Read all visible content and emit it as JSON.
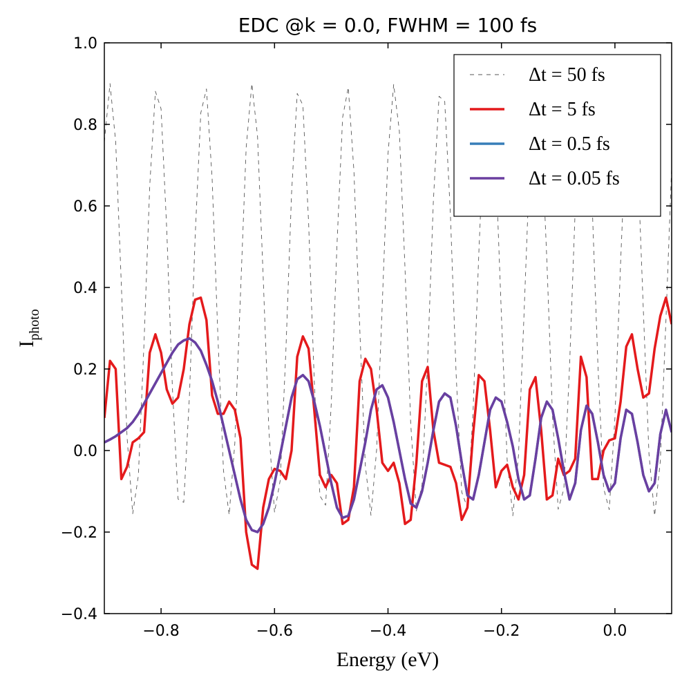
{
  "chart_data": {
    "type": "line",
    "title": "EDC @k = 0.0, FWHM = 100 fs",
    "xlabel": "Energy (eV)",
    "ylabel": {
      "main": "I",
      "sub": "photo"
    },
    "xlim": [
      -0.9,
      0.1
    ],
    "ylim": [
      -0.4,
      1.0
    ],
    "xticks": [
      {
        "value": -0.8,
        "label": "−0.8"
      },
      {
        "value": -0.6,
        "label": "−0.6"
      },
      {
        "value": -0.4,
        "label": "−0.4"
      },
      {
        "value": -0.2,
        "label": "−0.2"
      },
      {
        "value": 0,
        "label": "0.0"
      }
    ],
    "yticks": [
      {
        "value": -0.4,
        "label": "−0.4"
      },
      {
        "value": -0.2,
        "label": "−0.2"
      },
      {
        "value": 0,
        "label": "0.0"
      },
      {
        "value": 0.2,
        "label": "0.2"
      },
      {
        "value": 0.4,
        "label": "0.4"
      },
      {
        "value": 0.6,
        "label": "0.6"
      },
      {
        "value": 0.8,
        "label": "0.8"
      },
      {
        "value": 1,
        "label": "1.0"
      }
    ],
    "legend": "upper right",
    "x": [
      -0.9,
      -0.89,
      -0.88,
      -0.87,
      -0.86,
      -0.85,
      -0.84,
      -0.83,
      -0.82,
      -0.81,
      -0.8,
      -0.79,
      -0.78,
      -0.77,
      -0.76,
      -0.75,
      -0.74,
      -0.73,
      -0.72,
      -0.71,
      -0.7,
      -0.69,
      -0.68,
      -0.67,
      -0.66,
      -0.65,
      -0.64,
      -0.63,
      -0.62,
      -0.61,
      -0.6,
      -0.59,
      -0.58,
      -0.57,
      -0.56,
      -0.55,
      -0.54,
      -0.53,
      -0.52,
      -0.51,
      -0.5,
      -0.49,
      -0.48,
      -0.47,
      -0.46,
      -0.45,
      -0.44,
      -0.43,
      -0.42,
      -0.41,
      -0.4,
      -0.39,
      -0.38,
      -0.37,
      -0.36,
      -0.35,
      -0.34,
      -0.33,
      -0.32,
      -0.31,
      -0.3,
      -0.29,
      -0.28,
      -0.27,
      -0.26,
      -0.25,
      -0.24,
      -0.23,
      -0.22,
      -0.21,
      -0.2,
      -0.19,
      -0.18,
      -0.17,
      -0.16,
      -0.15,
      -0.14,
      -0.13,
      -0.12,
      -0.11,
      -0.1,
      -0.09,
      -0.08,
      -0.07,
      -0.06,
      -0.05,
      -0.04,
      -0.03,
      -0.02,
      -0.01,
      0,
      0.01,
      0.02,
      0.03,
      0.04,
      0.05,
      0.06,
      0.07,
      0.08,
      0.09,
      0.1
    ],
    "series": [
      {
        "name": "Δt = 50 fs",
        "color": "#555555",
        "linestyle": "dashed",
        "values": [
          0.757,
          0.9,
          0.757,
          0.405,
          0.034,
          -0.155,
          -0.061,
          0.266,
          0.649,
          0.881,
          0.838,
          0.542,
          0.153,
          -0.119,
          -0.127,
          0.134,
          0.522,
          0.828,
          0.887,
          0.667,
          0.286,
          -0.049,
          -0.158,
          0.018,
          0.384,
          0.743,
          0.9,
          0.771,
          0.426,
          0.05,
          -0.152,
          -0.073,
          0.245,
          0.631,
          0.876,
          0.847,
          0.561,
          0.172,
          -0.111,
          -0.134,
          0.115,
          0.502,
          0.817,
          0.891,
          0.684,
          0.307,
          -0.036,
          -0.159,
          0.003,
          0.363,
          0.727,
          0.898,
          0.784,
          0.446,
          0.067,
          -0.148,
          -0.084,
          0.225,
          0.613,
          0.869,
          0.856,
          0.58,
          0.191,
          -0.102,
          -0.14,
          0.097,
          0.481,
          0.806,
          0.894,
          0.7,
          0.328,
          -0.022,
          -0.16,
          -0.012,
          0.342,
          0.711,
          0.896,
          0.797,
          0.467,
          0.084,
          -0.144,
          -0.094,
          0.205,
          0.594,
          0.862,
          0.864,
          0.599,
          0.211,
          -0.092,
          -0.145,
          0.08,
          0.461,
          0.793,
          0.897,
          0.716,
          0.348,
          -0.008,
          -0.16,
          -0.026,
          0.322,
          0.695
        ]
      },
      {
        "name": "Δt = 5 fs",
        "color": "#e41a1c",
        "linestyle": "solid",
        "values": [
          0.08,
          0.22,
          0.2,
          -0.07,
          -0.04,
          0.02,
          0.03,
          0.045,
          0.24,
          0.285,
          0.24,
          0.15,
          0.115,
          0.13,
          0.2,
          0.31,
          0.37,
          0.375,
          0.32,
          0.135,
          0.09,
          0.09,
          0.12,
          0.1,
          0.03,
          -0.2,
          -0.28,
          -0.29,
          -0.14,
          -0.07,
          -0.045,
          -0.05,
          -0.07,
          0.0,
          0.23,
          0.28,
          0.25,
          0.1,
          -0.06,
          -0.09,
          -0.06,
          -0.08,
          -0.18,
          -0.17,
          -0.09,
          0.17,
          0.225,
          0.2,
          0.1,
          -0.03,
          -0.05,
          -0.03,
          -0.08,
          -0.18,
          -0.17,
          -0.03,
          0.17,
          0.205,
          0.05,
          -0.03,
          -0.035,
          -0.04,
          -0.08,
          -0.17,
          -0.14,
          0.04,
          0.185,
          0.17,
          0.05,
          -0.09,
          -0.05,
          -0.035,
          -0.09,
          -0.12,
          -0.06,
          0.15,
          0.18,
          0.05,
          -0.12,
          -0.11,
          -0.02,
          -0.06,
          -0.05,
          -0.02,
          0.23,
          0.18,
          -0.07,
          -0.07,
          0.0,
          0.025,
          0.03,
          0.12,
          0.255,
          0.285,
          0.2,
          0.13,
          0.14,
          0.25,
          0.33,
          0.375,
          0.31
        ]
      },
      {
        "name": "Δt = 0.5 fs",
        "color": "#377eb8",
        "linestyle": "solid",
        "values": [
          0.02,
          0.027,
          0.035,
          0.045,
          0.055,
          0.07,
          0.09,
          0.115,
          0.14,
          0.165,
          0.19,
          0.215,
          0.24,
          0.26,
          0.27,
          0.275,
          0.265,
          0.245,
          0.21,
          0.17,
          0.12,
          0.06,
          0.0,
          -0.06,
          -0.12,
          -0.17,
          -0.195,
          -0.2,
          -0.18,
          -0.14,
          -0.08,
          -0.01,
          0.06,
          0.13,
          0.175,
          0.185,
          0.17,
          0.12,
          0.06,
          -0.01,
          -0.08,
          -0.14,
          -0.165,
          -0.16,
          -0.12,
          -0.05,
          0.02,
          0.1,
          0.15,
          0.16,
          0.13,
          0.07,
          0.0,
          -0.07,
          -0.13,
          -0.14,
          -0.1,
          -0.03,
          0.05,
          0.12,
          0.14,
          0.13,
          0.06,
          -0.03,
          -0.11,
          -0.12,
          -0.06,
          0.02,
          0.1,
          0.13,
          0.12,
          0.07,
          0.01,
          -0.07,
          -0.12,
          -0.11,
          -0.02,
          0.08,
          0.12,
          0.1,
          0.03,
          -0.05,
          -0.12,
          -0.08,
          0.05,
          0.11,
          0.09,
          0.02,
          -0.06,
          -0.1,
          -0.08,
          0.03,
          0.1,
          0.09,
          0.02,
          -0.06,
          -0.1,
          -0.08,
          0.04,
          0.1,
          0.045
        ]
      },
      {
        "name": "Δt = 0.05 fs",
        "color": "#6a3fa0",
        "linestyle": "solid",
        "values": [
          0.02,
          0.027,
          0.035,
          0.045,
          0.055,
          0.07,
          0.09,
          0.115,
          0.14,
          0.165,
          0.19,
          0.215,
          0.24,
          0.26,
          0.27,
          0.275,
          0.265,
          0.245,
          0.21,
          0.17,
          0.12,
          0.06,
          0.0,
          -0.06,
          -0.12,
          -0.17,
          -0.195,
          -0.2,
          -0.18,
          -0.14,
          -0.08,
          -0.01,
          0.06,
          0.13,
          0.175,
          0.185,
          0.17,
          0.12,
          0.06,
          -0.01,
          -0.08,
          -0.14,
          -0.165,
          -0.16,
          -0.12,
          -0.05,
          0.02,
          0.1,
          0.15,
          0.16,
          0.13,
          0.07,
          0.0,
          -0.07,
          -0.13,
          -0.14,
          -0.1,
          -0.03,
          0.05,
          0.12,
          0.14,
          0.13,
          0.06,
          -0.03,
          -0.11,
          -0.12,
          -0.06,
          0.02,
          0.1,
          0.13,
          0.12,
          0.07,
          0.01,
          -0.07,
          -0.12,
          -0.11,
          -0.02,
          0.08,
          0.12,
          0.1,
          0.03,
          -0.05,
          -0.12,
          -0.08,
          0.05,
          0.11,
          0.09,
          0.02,
          -0.06,
          -0.1,
          -0.08,
          0.03,
          0.1,
          0.09,
          0.02,
          -0.06,
          -0.1,
          -0.08,
          0.04,
          0.1,
          0.045
        ]
      }
    ]
  }
}
